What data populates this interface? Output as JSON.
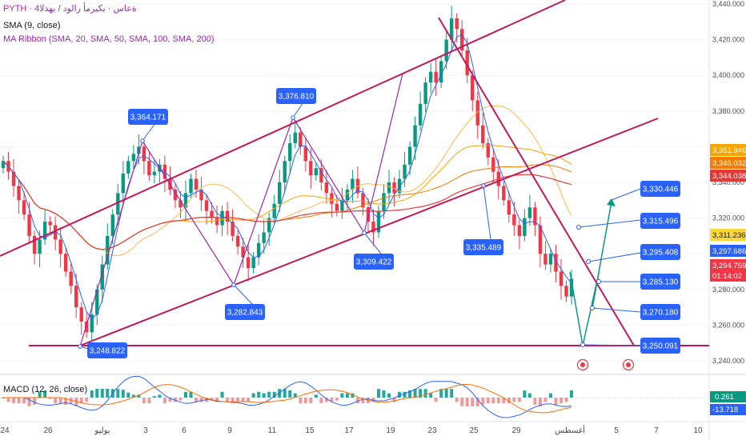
{
  "legend": {
    "symbol": "PYTH · ‎4ةعاس · يكيرمأ رالود / بهذلا",
    "sma": "SMA (9, close)",
    "ribbon": "MA Ribbon (SMA, 20, SMA, 50, SMA, 100, SMA, 200)",
    "macd": "MACD (12, 26, close)"
  },
  "colors": {
    "up": "#089981",
    "down": "#f23645",
    "sma": "#2962ff",
    "ma20": "#ffb74d",
    "ma50": "#f7a600",
    "ma100": "#f57c00",
    "ma200": "#e53935",
    "trend": "#c2185b",
    "zigzag": "#9c27b0",
    "projection": "#089981",
    "callout": "#2962ff"
  },
  "chart_data": {
    "type": "candlestick",
    "y_axis_ticks": [
      "3,440.000",
      "3,420.000",
      "3,400.000",
      "3,380.000",
      "3,360.000",
      "3,340.000",
      "3,320.000",
      "3,300.000",
      "3,280.000",
      "3,260.000",
      "3,240.000"
    ],
    "ylim": [
      3238,
      3442
    ],
    "x_axis_labels": [
      "24",
      "26",
      "يوليو",
      "3",
      "6",
      "9",
      "11",
      "15",
      "17",
      "19",
      "23",
      "25",
      "29",
      "أغسطس",
      "5",
      "7",
      "10"
    ],
    "price_tags": [
      {
        "value": 3351.946,
        "label": "3,351.946",
        "color": "#f7a600"
      },
      {
        "value": 3346.032,
        "label": "3,346.032",
        "color": "#f57c00"
      },
      {
        "value": 3344.038,
        "label": "3,344.038",
        "color": "#e53935"
      },
      {
        "value": 3311.236,
        "label": "3,311.236",
        "color": "#fdd835",
        "text_color": "#131722"
      },
      {
        "value": 3297.686,
        "label": "3,297.686",
        "color": "#2962ff"
      },
      {
        "value": 3294.759,
        "label": "3,294.759",
        "color": "#f23645",
        "sub": "01:14:02"
      }
    ],
    "callouts": [
      {
        "label": "3,364.171",
        "value": 3364.171
      },
      {
        "label": "3,376.810",
        "value": 3376.81
      },
      {
        "label": "3,309.422",
        "value": 3309.422
      },
      {
        "label": "3,282.843",
        "value": 3282.843
      },
      {
        "label": "3,248.822",
        "value": 3248.822
      },
      {
        "label": "3,335.489",
        "value": 3335.489
      }
    ],
    "projection_levels": [
      {
        "label": "3,330.446",
        "value": 3330.446
      },
      {
        "label": "3,315.496",
        "value": 3315.496
      },
      {
        "label": "3,295.408",
        "value": 3295.408
      },
      {
        "label": "3,285.130",
        "value": 3285.13
      },
      {
        "label": "3,270.180",
        "value": 3270.18
      },
      {
        "label": "3,250.091",
        "value": 3250.091
      }
    ],
    "support_level": 3249,
    "closes": [
      3352,
      3346,
      3338,
      3330,
      3322,
      3310,
      3300,
      3308,
      3318,
      3316,
      3308,
      3300,
      3290,
      3282,
      3270,
      3262,
      3256,
      3266,
      3280,
      3294,
      3310,
      3322,
      3334,
      3345,
      3352,
      3356,
      3360,
      3352,
      3344,
      3346,
      3350,
      3342,
      3336,
      3330,
      3326,
      3334,
      3342,
      3336,
      3330,
      3324,
      3320,
      3316,
      3324,
      3318,
      3310,
      3304,
      3298,
      3292,
      3298,
      3306,
      3312,
      3320,
      3328,
      3340,
      3352,
      3362,
      3368,
      3360,
      3352,
      3344,
      3348,
      3340,
      3334,
      3328,
      3324,
      3330,
      3336,
      3342,
      3334,
      3326,
      3318,
      3312,
      3324,
      3334,
      3340,
      3334,
      3342,
      3350,
      3360,
      3372,
      3384,
      3396,
      3402,
      3396,
      3408,
      3420,
      3432,
      3426,
      3414,
      3400,
      3386,
      3372,
      3362,
      3354,
      3346,
      3338,
      3330,
      3322,
      3316,
      3310,
      3320,
      3326,
      3316,
      3300,
      3294,
      3300,
      3290,
      3282,
      3276,
      3286
    ],
    "macd_values": {
      "macd": "0.261",
      "signal": "-13.718"
    }
  }
}
